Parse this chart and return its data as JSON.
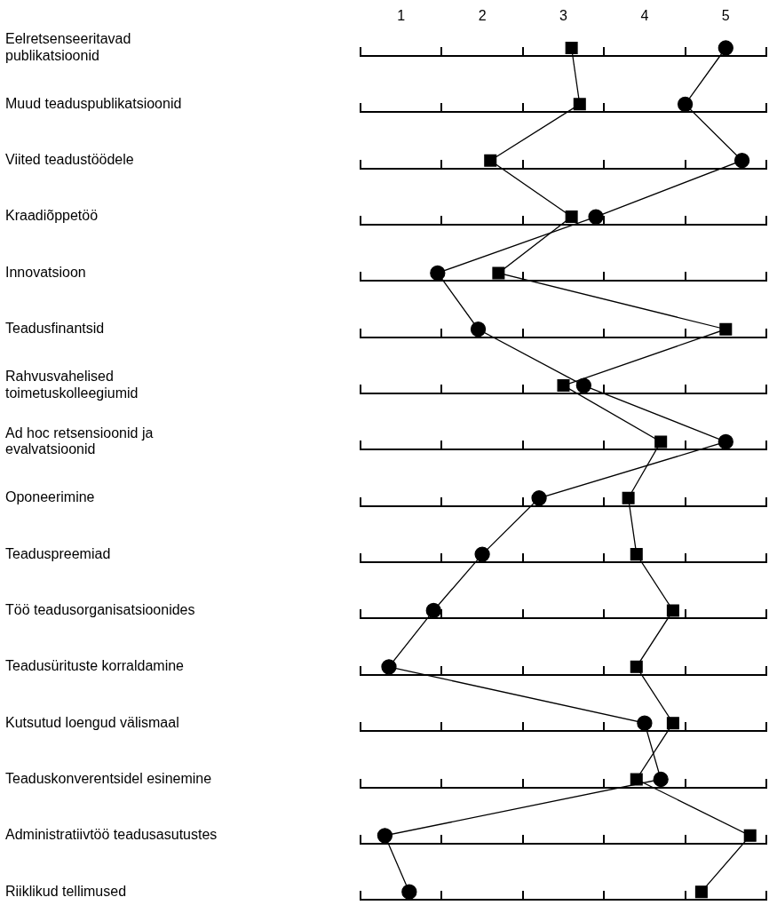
{
  "chart_data": {
    "type": "line",
    "categories": [
      "Eelretsenseeritavad publikatsioonid",
      "Muud teaduspublikatsioonid",
      "Viited teadustöödele",
      "Kraadiõppetöö",
      "Innovatsioon",
      "Teadusfinantsid",
      "Rahvusvahelised toimetuskolleegiumid",
      "Ad hoc retsensioonid ja evalvatsioonid",
      "Oponeerimine",
      "Teaduspreemiad",
      "Töö teadusorganisatsioonides",
      "Teadusürituste korraldamine",
      "Kutsutud loengud välismaal",
      "Teaduskonverentsidel esinemine",
      "Administratiivtöö teadusasutustes",
      "Riiklikud tellimused"
    ],
    "orientation": "horizontal",
    "series": [
      {
        "color": "#000000",
        "marker": "square",
        "axis": "x2",
        "values": [
          3.1,
          3.2,
          2.1,
          3.1,
          2.2,
          5.0,
          3.0,
          4.2,
          3.8,
          3.9,
          4.35,
          3.9,
          4.35,
          3.9,
          5.3,
          4.7
        ]
      },
      {
        "color": "#000000",
        "marker": "circle",
        "axis": "x2",
        "values": [
          5.0,
          4.5,
          5.2,
          3.4,
          1.45,
          1.95,
          3.25,
          5.0,
          2.7,
          2.0,
          1.4,
          0.85,
          4.0,
          4.2,
          0.8,
          1.1
        ]
      }
    ],
    "x2lim": [
      0.5,
      5.5
    ],
    "x2ticks": [
      1,
      2,
      3,
      4,
      5
    ],
    "grid": false,
    "legend": false
  }
}
